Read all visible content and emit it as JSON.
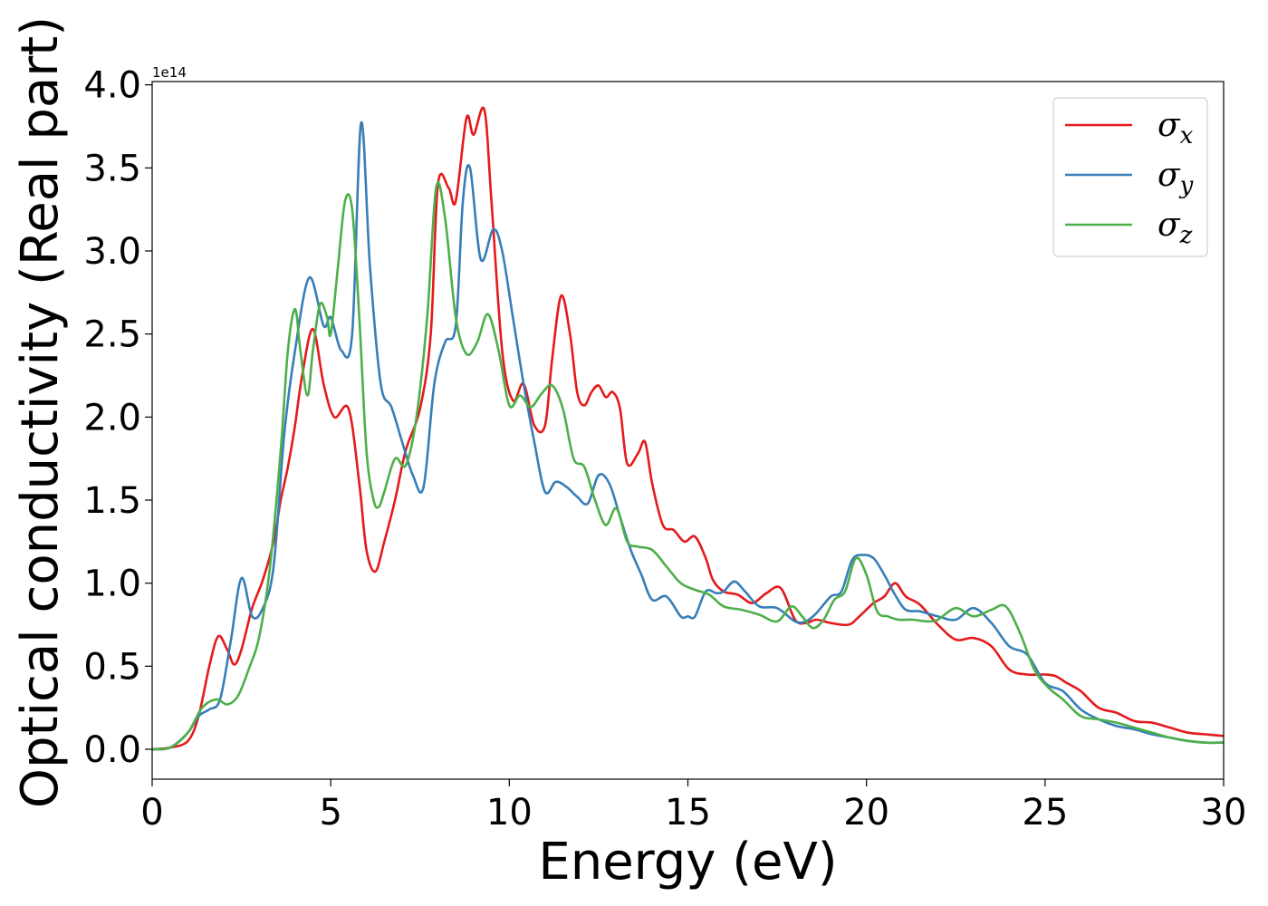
{
  "chart_data": {
    "type": "line",
    "xlabel": "Energy (eV)",
    "ylabel": "Optical conductivity (Real part)",
    "y_offset_label": "1e14",
    "xlim": [
      0,
      30
    ],
    "ylim": [
      -0.18,
      4.02
    ],
    "x_ticks": [
      0,
      5,
      10,
      15,
      20,
      25,
      30
    ],
    "x_tick_labels": [
      "0",
      "5",
      "10",
      "15",
      "20",
      "25",
      "30"
    ],
    "y_ticks": [
      0.0,
      0.5,
      1.0,
      1.5,
      2.0,
      2.5,
      3.0,
      3.5,
      4.0
    ],
    "y_tick_labels": [
      "0.0",
      "0.5",
      "1.0",
      "1.5",
      "2.0",
      "2.5",
      "3.0",
      "3.5",
      "4.0"
    ],
    "grid": false,
    "legend_position": "top-right",
    "series": [
      {
        "name": "σx",
        "symbol": "σ",
        "subscript": "x",
        "color": "#e41a1c",
        "x": [
          0,
          0.5,
          1.0,
          1.3,
          1.6,
          1.85,
          2.1,
          2.3,
          2.5,
          2.8,
          3.1,
          3.4,
          3.6,
          3.8,
          4.0,
          4.2,
          4.5,
          4.8,
          5.1,
          5.5,
          5.8,
          6.0,
          6.25,
          6.5,
          6.8,
          7.1,
          7.5,
          7.8,
          8.0,
          8.3,
          8.5,
          8.8,
          9.0,
          9.3,
          9.5,
          9.8,
          10.1,
          10.4,
          10.7,
          11.0,
          11.2,
          11.45,
          11.7,
          11.9,
          12.1,
          12.3,
          12.5,
          12.7,
          12.9,
          13.1,
          13.3,
          13.6,
          13.8,
          14.0,
          14.3,
          14.6,
          14.9,
          15.2,
          15.5,
          15.7,
          16.0,
          16.4,
          16.8,
          17.2,
          17.6,
          18.0,
          18.3,
          18.6,
          19.0,
          19.5,
          19.8,
          20.2,
          20.5,
          20.8,
          21.1,
          21.5,
          22.0,
          22.5,
          23.0,
          23.5,
          24.0,
          24.5,
          25.0,
          25.3,
          25.6,
          26.0,
          26.5,
          27.0,
          27.5,
          28.0,
          28.5,
          29.0,
          29.5,
          30.0
        ],
        "y": [
          0.0,
          0.01,
          0.05,
          0.2,
          0.5,
          0.68,
          0.6,
          0.51,
          0.6,
          0.85,
          1.02,
          1.25,
          1.5,
          1.7,
          1.95,
          2.25,
          2.53,
          2.2,
          2.0,
          2.05,
          1.6,
          1.2,
          1.07,
          1.25,
          1.5,
          1.8,
          2.05,
          2.5,
          3.4,
          3.38,
          3.3,
          3.8,
          3.7,
          3.85,
          3.3,
          2.4,
          2.1,
          2.2,
          1.95,
          1.95,
          2.35,
          2.73,
          2.5,
          2.15,
          2.07,
          2.15,
          2.19,
          2.12,
          2.15,
          2.05,
          1.72,
          1.78,
          1.85,
          1.6,
          1.35,
          1.32,
          1.25,
          1.28,
          1.15,
          1.02,
          0.95,
          0.93,
          0.88,
          0.94,
          0.97,
          0.78,
          0.76,
          0.78,
          0.76,
          0.75,
          0.8,
          0.88,
          0.92,
          1.0,
          0.92,
          0.87,
          0.75,
          0.66,
          0.67,
          0.62,
          0.48,
          0.45,
          0.45,
          0.44,
          0.4,
          0.35,
          0.25,
          0.22,
          0.17,
          0.16,
          0.13,
          0.1,
          0.09,
          0.08
        ]
      },
      {
        "name": "σy",
        "symbol": "σ",
        "subscript": "y",
        "color": "#377eb8",
        "x": [
          0,
          0.5,
          1.0,
          1.3,
          1.6,
          1.9,
          2.2,
          2.5,
          2.8,
          3.1,
          3.4,
          3.7,
          4.0,
          4.4,
          4.8,
          5.0,
          5.3,
          5.6,
          5.85,
          6.1,
          6.4,
          6.7,
          7.0,
          7.3,
          7.6,
          7.9,
          8.2,
          8.5,
          8.7,
          8.9,
          9.2,
          9.55,
          9.8,
          10.1,
          10.4,
          10.7,
          11.0,
          11.3,
          11.6,
          11.9,
          12.2,
          12.5,
          12.8,
          13.1,
          13.4,
          13.7,
          14.0,
          14.4,
          14.8,
          15.0,
          15.2,
          15.5,
          15.8,
          16.0,
          16.3,
          16.6,
          17.0,
          17.5,
          18.0,
          18.3,
          18.6,
          19.0,
          19.3,
          19.6,
          19.9,
          20.2,
          20.5,
          20.8,
          21.1,
          21.5,
          22.0,
          22.5,
          23.0,
          23.5,
          24.0,
          24.5,
          25.0,
          25.5,
          26.0,
          26.5,
          27.0,
          27.5,
          28.0,
          28.5,
          29.0,
          29.5,
          30.0
        ],
        "y": [
          0.0,
          0.01,
          0.1,
          0.2,
          0.24,
          0.3,
          0.65,
          1.03,
          0.8,
          0.85,
          1.1,
          1.9,
          2.4,
          2.84,
          2.55,
          2.6,
          2.4,
          2.5,
          3.77,
          2.9,
          2.2,
          2.06,
          1.85,
          1.65,
          1.58,
          2.2,
          2.45,
          2.55,
          3.3,
          3.5,
          2.95,
          3.13,
          3.0,
          2.6,
          2.2,
          1.85,
          1.55,
          1.61,
          1.58,
          1.52,
          1.48,
          1.65,
          1.6,
          1.4,
          1.2,
          1.05,
          0.9,
          0.92,
          0.8,
          0.8,
          0.8,
          0.95,
          0.94,
          0.95,
          1.01,
          0.95,
          0.86,
          0.85,
          0.77,
          0.77,
          0.82,
          0.92,
          0.95,
          1.14,
          1.17,
          1.15,
          1.05,
          0.93,
          0.84,
          0.83,
          0.8,
          0.78,
          0.85,
          0.76,
          0.62,
          0.57,
          0.4,
          0.35,
          0.24,
          0.18,
          0.14,
          0.12,
          0.09,
          0.07,
          0.05,
          0.04,
          0.04
        ]
      },
      {
        "name": "σz",
        "symbol": "σ",
        "subscript": "z",
        "color": "#4daf4a",
        "x": [
          0,
          0.5,
          1.0,
          1.4,
          1.8,
          2.1,
          2.4,
          2.7,
          3.0,
          3.3,
          3.6,
          3.8,
          4.0,
          4.15,
          4.35,
          4.5,
          4.7,
          4.9,
          5.0,
          5.2,
          5.4,
          5.6,
          5.8,
          6.0,
          6.2,
          6.35,
          6.5,
          6.8,
          7.1,
          7.4,
          7.7,
          7.95,
          8.2,
          8.5,
          8.8,
          9.1,
          9.4,
          9.7,
          10.0,
          10.3,
          10.6,
          10.9,
          11.2,
          11.5,
          11.8,
          12.1,
          12.4,
          12.7,
          13.0,
          13.3,
          13.6,
          14.0,
          14.4,
          14.8,
          15.2,
          15.6,
          16.0,
          16.5,
          17.0,
          17.5,
          17.9,
          18.2,
          18.5,
          18.8,
          19.1,
          19.4,
          19.7,
          20.0,
          20.3,
          20.6,
          20.9,
          21.3,
          21.7,
          22.0,
          22.5,
          23.0,
          23.5,
          23.9,
          24.3,
          24.7,
          25.1,
          25.5,
          26.0,
          26.5,
          27.0,
          27.5,
          28.0,
          28.5,
          29.0,
          29.5,
          30.0
        ],
        "y": [
          0.0,
          0.01,
          0.1,
          0.25,
          0.3,
          0.27,
          0.32,
          0.48,
          0.68,
          1.1,
          1.8,
          2.4,
          2.65,
          2.4,
          2.13,
          2.4,
          2.68,
          2.6,
          2.5,
          2.9,
          3.3,
          3.25,
          2.6,
          1.8,
          1.5,
          1.46,
          1.55,
          1.75,
          1.71,
          2.0,
          2.6,
          3.38,
          3.2,
          2.6,
          2.38,
          2.45,
          2.62,
          2.4,
          2.07,
          2.13,
          2.06,
          2.14,
          2.19,
          2.05,
          1.75,
          1.7,
          1.5,
          1.35,
          1.45,
          1.25,
          1.22,
          1.2,
          1.1,
          1.0,
          0.96,
          0.93,
          0.86,
          0.84,
          0.81,
          0.77,
          0.86,
          0.8,
          0.73,
          0.78,
          0.9,
          0.95,
          1.15,
          1.05,
          0.83,
          0.8,
          0.78,
          0.78,
          0.77,
          0.78,
          0.85,
          0.8,
          0.84,
          0.86,
          0.7,
          0.48,
          0.37,
          0.3,
          0.2,
          0.18,
          0.16,
          0.13,
          0.1,
          0.07,
          0.05,
          0.04,
          0.04
        ]
      }
    ]
  }
}
